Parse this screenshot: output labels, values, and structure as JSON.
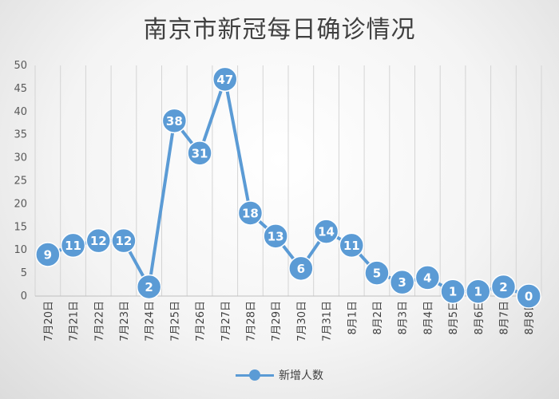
{
  "chart_data": {
    "type": "line",
    "title": "南京市新冠每日确诊情况",
    "categories": [
      "7月20日",
      "7月21日",
      "7月22日",
      "7月23日",
      "7月24日",
      "7月25日",
      "7月26日",
      "7月27日",
      "7月28日",
      "7月29日",
      "7月30日",
      "7月31日",
      "8月1日",
      "8月2日",
      "8月3日",
      "8月4日",
      "8月5日",
      "8月6日",
      "8月7日",
      "8月8日"
    ],
    "series": [
      {
        "name": "新增人数",
        "values": [
          9,
          11,
          12,
          12,
          2,
          38,
          31,
          47,
          18,
          13,
          6,
          14,
          11,
          5,
          3,
          4,
          1,
          1,
          2,
          0
        ],
        "color": "#5b9bd5"
      }
    ],
    "yticks": [
      "0",
      "5",
      "10",
      "15",
      "20",
      "25",
      "30",
      "35",
      "40",
      "45",
      "50"
    ],
    "ylim": [
      0,
      50
    ],
    "grid": "vertical",
    "legend": "bottom",
    "data_labels": true
  }
}
